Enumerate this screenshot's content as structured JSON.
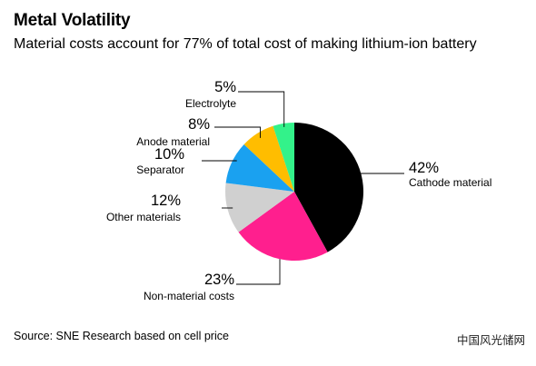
{
  "header": {
    "title": "Metal Volatility",
    "subtitle": "Material costs account for 77% of total cost of making lithium-ion battery"
  },
  "footer": {
    "source": "Source: SNE Research based on cell price",
    "watermark": "中国风光储网"
  },
  "chart_data": {
    "type": "pie",
    "title": "Metal Volatility",
    "subtitle": "Material costs account for 77% of total cost of making lithium-ion battery",
    "categories": [
      "Cathode material",
      "Non-material costs",
      "Other materials",
      "Separator",
      "Anode material",
      "Electrolyte"
    ],
    "values": [
      42,
      23,
      12,
      10,
      8,
      5
    ],
    "value_labels": [
      "42%",
      "23%",
      "12%",
      "10%",
      "8%",
      "5%"
    ],
    "colors": [
      "#000000",
      "#ff1f8e",
      "#d0d0d0",
      "#1aa1f0",
      "#ffbd00",
      "#33f28a"
    ],
    "start": "12 o'clock, clockwise"
  }
}
